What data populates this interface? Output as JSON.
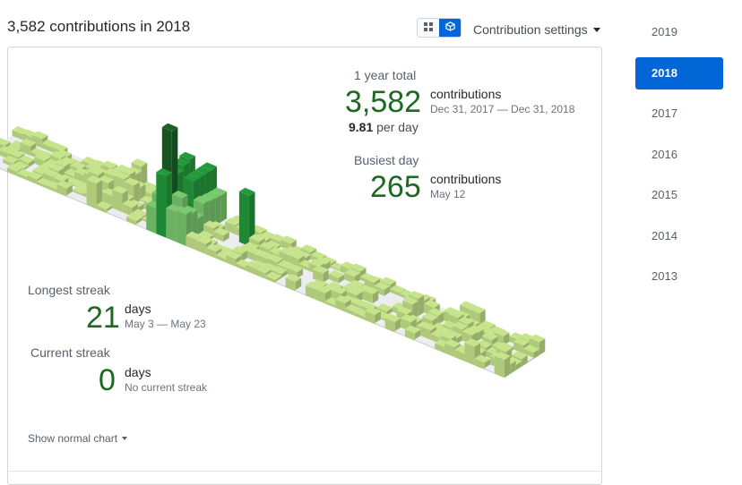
{
  "header": {
    "title": "3,582 contributions in 2018"
  },
  "toolbar": {
    "grid_view_icon": "grid-icon",
    "iso_view_icon": "cube-icon",
    "settings_label": "Contribution settings"
  },
  "stats": {
    "total": {
      "label": "1 year total",
      "value": "3,582",
      "unit": "contributions",
      "range": "Dec 31, 2017 — Dec 31, 2018",
      "per_day_value": "9.81",
      "per_day_suffix": "per day"
    },
    "busiest": {
      "label": "Busiest day",
      "value": "265",
      "unit": "contributions",
      "date": "May 12"
    },
    "longest": {
      "label": "Longest streak",
      "value": "21",
      "unit": "days",
      "range": "May 3 — May 23"
    },
    "current": {
      "label": "Current streak",
      "value": "0",
      "unit": "days",
      "range": "No current streak"
    }
  },
  "footer": {
    "show_normal_label": "Show normal chart"
  },
  "years": [
    {
      "label": "2019",
      "active": false
    },
    {
      "label": "2018",
      "active": true
    },
    {
      "label": "2017",
      "active": false
    },
    {
      "label": "2016",
      "active": false
    },
    {
      "label": "2015",
      "active": false
    },
    {
      "label": "2014",
      "active": false
    },
    {
      "label": "2013",
      "active": false
    }
  ],
  "colors": {
    "accent": "#0366d6",
    "big_number": "#1e6823",
    "cell_empty": "#ebedf0",
    "cell_level1": "#c6e48b",
    "cell_level2": "#7bc96f",
    "cell_level3": "#239a3b",
    "cell_level4": "#196127"
  }
}
